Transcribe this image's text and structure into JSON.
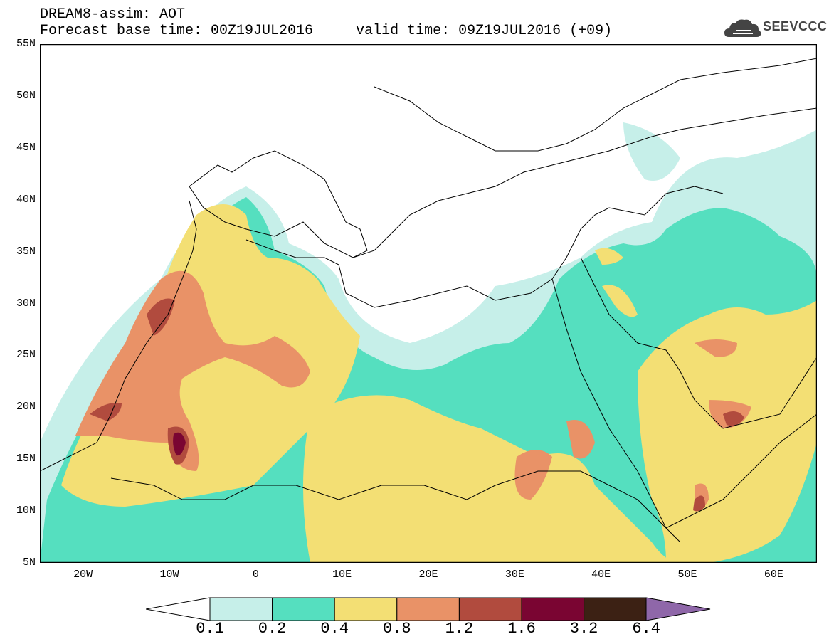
{
  "header": {
    "line1": "DREAM8-assim: AOT",
    "line2": "Forecast base time: 00Z19JUL2016     valid time: 09Z19JUL2016 (+09)"
  },
  "brand": {
    "text": "SEEVCCC",
    "icon": "cloud-icon"
  },
  "map": {
    "lat_labels": [
      "55N",
      "50N",
      "45N",
      "40N",
      "35N",
      "30N",
      "25N",
      "20N",
      "15N",
      "10N",
      "5N"
    ],
    "lon_labels": [
      "20W",
      "10W",
      "0",
      "10E",
      "20E",
      "30E",
      "40E",
      "50E",
      "60E"
    ],
    "lat_range": [
      5,
      55
    ],
    "lon_range": [
      -25,
      65
    ],
    "field": "AOT"
  },
  "legend": {
    "values": [
      "0.1",
      "0.2",
      "0.4",
      "0.8",
      "1.2",
      "1.6",
      "3.2",
      "6.4"
    ],
    "colors": [
      "#c6efe9",
      "#55dfbf",
      "#f3df74",
      "#e99267",
      "#b14b3e",
      "#7a0532",
      "#3c2114",
      "#8f67a9"
    ],
    "under_color": "#ffffff",
    "over_color": "#8f67a9"
  }
}
